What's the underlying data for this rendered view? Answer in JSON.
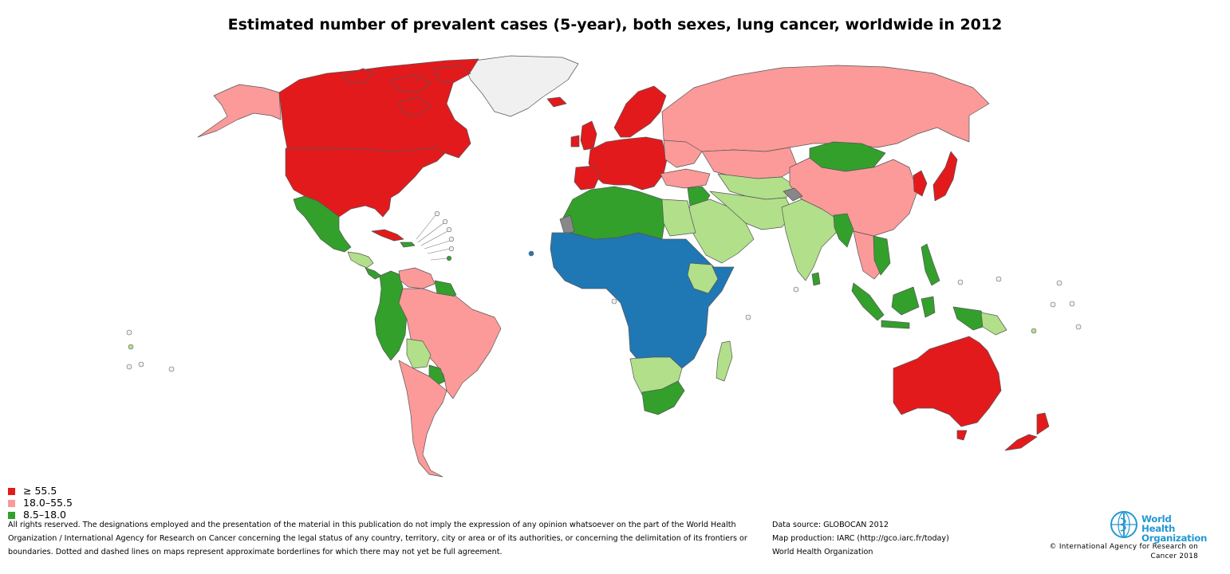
{
  "title": "Estimated number of prevalent cases (5-year), both sexes, lung cancer, worldwide in 2012",
  "colors": {
    "high": "#e31a1c",
    "mid": "#fb9a99",
    "low": "#33a02c",
    "lower": "#b2df8a",
    "lowest": "#1f78b4",
    "no_data": "#f0f0f0",
    "not_applicable": "#888888",
    "who_blue": "#2398d3"
  },
  "legend": {
    "items": [
      {
        "label": "≥ 55.5",
        "color": "#e31a1c"
      },
      {
        "label": "18.0–55.5",
        "color": "#fb9a99"
      },
      {
        "label": "8.5–18.0",
        "color": "#33a02c"
      }
    ]
  },
  "disclaimer": {
    "line1": "All rights reserved. The designations employed and the presentation of the material in this publication do not imply the expression of any opinion whatsoever on the part of the World Health",
    "line2": "Organization / International Agency for Research on Cancer concerning the legal status of any country, territory, city or area or of its authorities, or concerning the delimitation of its frontiers or",
    "line3": "boundaries. Dotted and dashed lines on maps represent approximate borderlines for which there may not yet be full agreement."
  },
  "source": {
    "data_source": "Data source: GLOBOCAN 2012",
    "map_production": "Map production: IARC (http://gco.iarc.fr/today)",
    "organization": "World Health Organization"
  },
  "logo": {
    "line1": "World Health",
    "line2": "Organization",
    "icon": "who-emblem-icon"
  },
  "copyright": {
    "line1": "© International Agency for Research on",
    "line2": "Cancer 2018"
  }
}
